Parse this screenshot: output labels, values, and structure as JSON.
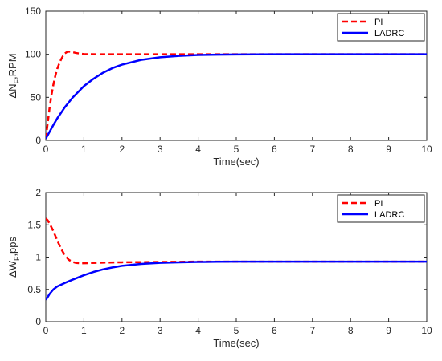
{
  "chart_data": [
    {
      "type": "line",
      "xlabel": "Time(sec)",
      "ylabel_main": "ΔN",
      "ylabel_sub": "F",
      "ylabel_rest": ",RPM",
      "xlim": [
        0,
        10
      ],
      "ylim": [
        0,
        150
      ],
      "xticks": [
        0,
        1,
        2,
        3,
        4,
        5,
        6,
        7,
        8,
        9,
        10
      ],
      "yticks": [
        0,
        50,
        100,
        150
      ],
      "grid": false,
      "legend_position": "top-right",
      "series": [
        {
          "name": "PI",
          "color": "#ff0000",
          "style": "dashed",
          "x": [
            0,
            0.05,
            0.1,
            0.15,
            0.2,
            0.25,
            0.3,
            0.35,
            0.4,
            0.45,
            0.5,
            0.55,
            0.6,
            0.65,
            0.7,
            0.8,
            0.9,
            1.0,
            1.2,
            1.5,
            2,
            3,
            4,
            5,
            6,
            7,
            8,
            9,
            10
          ],
          "values": [
            2,
            20,
            38,
            53,
            65,
            75,
            83,
            89,
            94,
            98,
            101,
            102.5,
            103.2,
            103,
            102.5,
            101.5,
            100.8,
            100.3,
            100.1,
            100,
            100,
            100,
            100,
            100,
            100,
            100,
            100,
            100,
            100
          ]
        },
        {
          "name": "LADRC",
          "color": "#0000ff",
          "style": "solid",
          "x": [
            0,
            0.1,
            0.2,
            0.3,
            0.5,
            0.7,
            1.0,
            1.25,
            1.5,
            1.75,
            2.0,
            2.5,
            3.0,
            3.5,
            4.0,
            4.5,
            5,
            6,
            7,
            8,
            9,
            10
          ],
          "values": [
            2,
            10,
            18,
            25.5,
            38.5,
            49.5,
            63,
            71.5,
            78.5,
            84,
            88,
            93.5,
            96.5,
            98.2,
            99.2,
            99.6,
            99.8,
            100,
            100,
            100,
            100,
            100
          ]
        }
      ]
    },
    {
      "type": "line",
      "xlabel": "Time(sec)",
      "ylabel_main": "ΔW",
      "ylabel_sub": "F",
      "ylabel_rest": ",pps",
      "xlim": [
        0,
        10
      ],
      "ylim": [
        0,
        2
      ],
      "xticks": [
        0,
        1,
        2,
        3,
        4,
        5,
        6,
        7,
        8,
        9,
        10
      ],
      "yticks": [
        0,
        0.5,
        1,
        1.5,
        2
      ],
      "grid": false,
      "legend_position": "top-right",
      "series": [
        {
          "name": "PI",
          "color": "#ff0000",
          "style": "dashed",
          "x": [
            0,
            0.05,
            0.1,
            0.2,
            0.3,
            0.4,
            0.5,
            0.6,
            0.7,
            0.8,
            0.9,
            1.0,
            1.2,
            1.5,
            2,
            3,
            4,
            5,
            6,
            7,
            8,
            9,
            10
          ],
          "values": [
            1.6,
            1.57,
            1.52,
            1.4,
            1.26,
            1.13,
            1.03,
            0.96,
            0.925,
            0.91,
            0.905,
            0.905,
            0.91,
            0.915,
            0.92,
            0.925,
            0.93,
            0.93,
            0.93,
            0.93,
            0.93,
            0.93,
            0.93
          ]
        },
        {
          "name": "LADRC",
          "color": "#0000ff",
          "style": "solid",
          "x": [
            0,
            0.05,
            0.1,
            0.2,
            0.3,
            0.5,
            0.7,
            1.0,
            1.25,
            1.5,
            1.75,
            2.0,
            2.5,
            3.0,
            3.5,
            4.0,
            4.5,
            5,
            6,
            7,
            8,
            9,
            10
          ],
          "values": [
            0.34,
            0.38,
            0.43,
            0.5,
            0.545,
            0.6,
            0.65,
            0.72,
            0.77,
            0.81,
            0.84,
            0.865,
            0.895,
            0.912,
            0.92,
            0.925,
            0.928,
            0.93,
            0.93,
            0.93,
            0.93,
            0.93,
            0.93
          ]
        }
      ]
    }
  ]
}
